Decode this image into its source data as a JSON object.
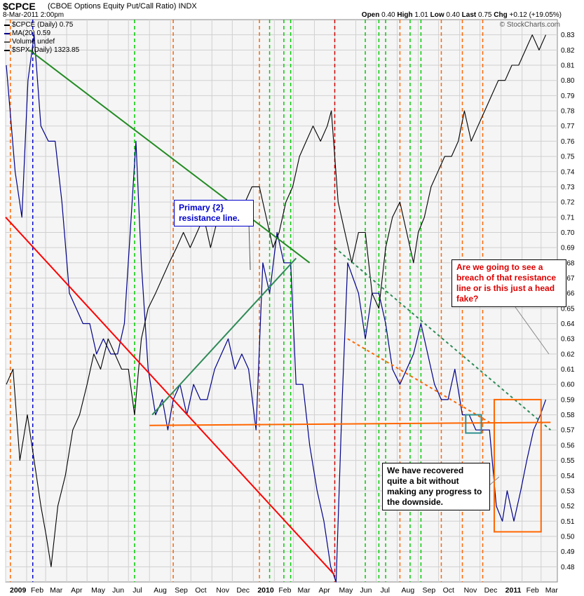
{
  "header": {
    "symbol": "$CPCE",
    "subtitle": "(CBOE Options Equity Put/Call Ratio)  INDX",
    "date": "8-Mar-2011 2:00pm",
    "open_label": "Open",
    "open_value": "0.40",
    "high_label": "High",
    "high_value": "1.01",
    "low_label": "Low",
    "low_value": "0.40",
    "last_label": "Last",
    "last_value": "0.75",
    "chg_label": "Chg",
    "chg_value": "+0.12 (+19.05%)",
    "watermark": "© StockCharts.com"
  },
  "legend": [
    {
      "label": "$CPCE (Daily) 0.75",
      "color": "#000000"
    },
    {
      "label": "MA(20) 0.59",
      "color": "#00008b"
    },
    {
      "label": "Volume undef",
      "color": "#555555"
    },
    {
      "label": "$SPX (Daily) 1323.85",
      "color": "#000000"
    }
  ],
  "notes": {
    "primary": "Primary {2} resistance line.",
    "breach": "Are we going to see a breach of that resistance line or is this just a head fake?",
    "recovered": "We have recovered quite a bit without making any progress to the downside."
  },
  "colors": {
    "ma_line": "#00008b",
    "spx_line": "#000000",
    "red_trend": "#ff0000",
    "green_trend": "#228b22",
    "orange_line": "#ff6600",
    "green_vline": "#00cc00",
    "orange_vline": "#ff6600",
    "blue_vline": "#0000cc",
    "red_vline": "#cc0000",
    "box": "#ff6600",
    "teal_box": "#2f8f8f"
  },
  "chart_data": {
    "type": "line",
    "yaxis_side": "right",
    "ylim": [
      0.47,
      0.84
    ],
    "yticks": [
      "0.48",
      "0.49",
      "0.50",
      "0.51",
      "0.52",
      "0.53",
      "0.54",
      "0.55",
      "0.56",
      "0.57",
      "0.58",
      "0.59",
      "0.60",
      "0.61",
      "0.62",
      "0.63",
      "0.64",
      "0.65",
      "0.66",
      "0.67",
      "0.68",
      "0.69",
      "0.70",
      "0.71",
      "0.72",
      "0.73",
      "0.74",
      "0.75",
      "0.76",
      "0.77",
      "0.78",
      "0.79",
      "0.80",
      "0.81",
      "0.82",
      "0.83"
    ],
    "xlim": [
      "2009-01-01",
      "2011-03-25"
    ],
    "xticks": [
      {
        "date": "2009-01-01",
        "label": "2009",
        "bold": true
      },
      {
        "date": "2009-02-01",
        "label": "Feb"
      },
      {
        "date": "2009-03-01",
        "label": "Mar"
      },
      {
        "date": "2009-04-01",
        "label": "Apr"
      },
      {
        "date": "2009-05-01",
        "label": "May"
      },
      {
        "date": "2009-06-01",
        "label": "Jun"
      },
      {
        "date": "2009-07-01",
        "label": "Jul"
      },
      {
        "date": "2009-08-01",
        "label": "Aug"
      },
      {
        "date": "2009-09-01",
        "label": "Sep"
      },
      {
        "date": "2009-10-01",
        "label": "Oct"
      },
      {
        "date": "2009-11-01",
        "label": "Nov"
      },
      {
        "date": "2009-12-01",
        "label": "Dec"
      },
      {
        "date": "2010-01-01",
        "label": "2010",
        "bold": true
      },
      {
        "date": "2010-02-01",
        "label": "Feb"
      },
      {
        "date": "2010-03-01",
        "label": "Mar"
      },
      {
        "date": "2010-04-01",
        "label": "Apr"
      },
      {
        "date": "2010-05-01",
        "label": "May"
      },
      {
        "date": "2010-06-01",
        "label": "Jun"
      },
      {
        "date": "2010-07-01",
        "label": "Jul"
      },
      {
        "date": "2010-08-01",
        "label": "Aug"
      },
      {
        "date": "2010-09-01",
        "label": "Sep"
      },
      {
        "date": "2010-10-01",
        "label": "Oct"
      },
      {
        "date": "2010-11-01",
        "label": "Nov"
      },
      {
        "date": "2010-12-01",
        "label": "Dec"
      },
      {
        "date": "2011-01-01",
        "label": "2011",
        "bold": true
      },
      {
        "date": "2011-02-01",
        "label": "Feb"
      },
      {
        "date": "2011-03-01",
        "label": "Mar"
      }
    ],
    "grid": true,
    "series": [
      {
        "name": "MA(20)",
        "color": "#00008b",
        "x": [
          "2009-01-02",
          "2009-01-15",
          "2009-01-25",
          "2009-02-03",
          "2009-02-12",
          "2009-02-22",
          "2009-03-05",
          "2009-03-15",
          "2009-03-25",
          "2009-04-05",
          "2009-04-15",
          "2009-04-25",
          "2009-05-05",
          "2009-05-15",
          "2009-05-25",
          "2009-06-05",
          "2009-06-15",
          "2009-06-25",
          "2009-07-05",
          "2009-07-12",
          "2009-07-20",
          "2009-07-30",
          "2009-08-10",
          "2009-08-20",
          "2009-08-28",
          "2009-09-05",
          "2009-09-15",
          "2009-09-25",
          "2009-10-05",
          "2009-10-15",
          "2009-10-25",
          "2009-11-05",
          "2009-11-15",
          "2009-11-25",
          "2009-12-05",
          "2009-12-15",
          "2009-12-25",
          "2010-01-05",
          "2010-01-15",
          "2010-01-25",
          "2010-02-05",
          "2010-02-15",
          "2010-02-25",
          "2010-03-05",
          "2010-03-15",
          "2010-03-25",
          "2010-04-05",
          "2010-04-15",
          "2010-04-25",
          "2010-05-03",
          "2010-05-12",
          "2010-05-20",
          "2010-05-28",
          "2010-06-05",
          "2010-06-15",
          "2010-06-25",
          "2010-07-05",
          "2010-07-15",
          "2010-07-25",
          "2010-08-05",
          "2010-08-15",
          "2010-08-25",
          "2010-09-05",
          "2010-09-15",
          "2010-09-25",
          "2010-10-05",
          "2010-10-15",
          "2010-10-25",
          "2010-11-05",
          "2010-11-15",
          "2010-11-25",
          "2010-12-05",
          "2010-12-15",
          "2010-12-25",
          "2011-01-03",
          "2011-01-10",
          "2011-01-20",
          "2011-01-30",
          "2011-02-08",
          "2011-02-18",
          "2011-02-28",
          "2011-03-08"
        ],
        "values": [
          0.81,
          0.74,
          0.71,
          0.8,
          0.83,
          0.77,
          0.76,
          0.76,
          0.72,
          0.66,
          0.65,
          0.64,
          0.64,
          0.62,
          0.63,
          0.62,
          0.62,
          0.64,
          0.71,
          0.76,
          0.68,
          0.61,
          0.58,
          0.59,
          0.57,
          0.59,
          0.6,
          0.58,
          0.6,
          0.59,
          0.59,
          0.61,
          0.62,
          0.63,
          0.61,
          0.62,
          0.61,
          0.57,
          0.68,
          0.66,
          0.7,
          0.68,
          0.68,
          0.6,
          0.6,
          0.56,
          0.53,
          0.51,
          0.48,
          0.47,
          0.59,
          0.68,
          0.67,
          0.66,
          0.63,
          0.66,
          0.66,
          0.64,
          0.61,
          0.6,
          0.61,
          0.62,
          0.64,
          0.62,
          0.6,
          0.59,
          0.59,
          0.61,
          0.58,
          0.58,
          0.57,
          0.57,
          0.57,
          0.52,
          0.51,
          0.53,
          0.51,
          0.53,
          0.55,
          0.57,
          0.58,
          0.59
        ]
      },
      {
        "name": "$SPX",
        "color": "#000000",
        "x": [
          "2009-01-02",
          "2009-01-12",
          "2009-01-22",
          "2009-02-02",
          "2009-02-12",
          "2009-02-22",
          "2009-03-02",
          "2009-03-09",
          "2009-03-19",
          "2009-03-30",
          "2009-04-10",
          "2009-04-20",
          "2009-05-01",
          "2009-05-11",
          "2009-05-21",
          "2009-06-01",
          "2009-06-11",
          "2009-06-21",
          "2009-07-01",
          "2009-07-10",
          "2009-07-20",
          "2009-07-30",
          "2009-08-10",
          "2009-08-20",
          "2009-08-30",
          "2009-09-10",
          "2009-09-20",
          "2009-09-30",
          "2009-10-10",
          "2009-10-20",
          "2009-10-30",
          "2009-11-10",
          "2009-11-20",
          "2009-11-30",
          "2009-12-10",
          "2009-12-20",
          "2009-12-30",
          "2010-01-10",
          "2010-01-20",
          "2010-01-30",
          "2010-02-08",
          "2010-02-18",
          "2010-02-28",
          "2010-03-10",
          "2010-03-20",
          "2010-03-30",
          "2010-04-10",
          "2010-04-20",
          "2010-04-26",
          "2010-05-06",
          "2010-05-16",
          "2010-05-26",
          "2010-06-05",
          "2010-06-15",
          "2010-06-25",
          "2010-07-05",
          "2010-07-15",
          "2010-07-25",
          "2010-08-05",
          "2010-08-15",
          "2010-08-25",
          "2010-09-01",
          "2010-09-10",
          "2010-09-20",
          "2010-09-30",
          "2010-10-10",
          "2010-10-20",
          "2010-10-30",
          "2010-11-08",
          "2010-11-18",
          "2010-11-28",
          "2010-12-08",
          "2010-12-18",
          "2010-12-28",
          "2011-01-07",
          "2011-01-17",
          "2011-01-27",
          "2011-02-06",
          "2011-02-16",
          "2011-02-26",
          "2011-03-08"
        ],
        "values": [
          0.6,
          0.61,
          0.55,
          0.58,
          0.55,
          0.52,
          0.5,
          0.48,
          0.52,
          0.54,
          0.57,
          0.58,
          0.6,
          0.62,
          0.61,
          0.63,
          0.62,
          0.61,
          0.61,
          0.58,
          0.63,
          0.65,
          0.66,
          0.67,
          0.68,
          0.69,
          0.7,
          0.69,
          0.7,
          0.71,
          0.69,
          0.71,
          0.71,
          0.72,
          0.71,
          0.72,
          0.73,
          0.73,
          0.71,
          0.69,
          0.7,
          0.72,
          0.73,
          0.75,
          0.76,
          0.77,
          0.76,
          0.77,
          0.78,
          0.72,
          0.7,
          0.68,
          0.7,
          0.7,
          0.66,
          0.65,
          0.69,
          0.71,
          0.72,
          0.7,
          0.68,
          0.7,
          0.71,
          0.73,
          0.74,
          0.75,
          0.75,
          0.76,
          0.78,
          0.76,
          0.77,
          0.78,
          0.79,
          0.8,
          0.8,
          0.81,
          0.81,
          0.82,
          0.83,
          0.82,
          0.83
        ]
      }
    ],
    "trendlines": [
      {
        "name": "red-trend-line",
        "color": "#ff0000",
        "from": [
          "2009-01-01",
          0.71
        ],
        "to": [
          "2010-04-30",
          0.475
        ],
        "dash": false,
        "width": 2
      },
      {
        "name": "green-trend-line-top",
        "color": "#228b22",
        "from": [
          "2009-02-05",
          0.82
        ],
        "to": [
          "2010-03-25",
          0.68
        ],
        "dash": false,
        "width": 2
      },
      {
        "name": "green-trend-line-rising",
        "color": "#2e8b57",
        "from": [
          "2009-08-05",
          0.58
        ],
        "to": [
          "2010-03-05",
          0.683
        ],
        "dash": false,
        "width": 2
      },
      {
        "name": "dotted-green-resistance-line",
        "color": "#2e8b57",
        "from": [
          "2010-05-01",
          0.69
        ],
        "to": [
          "2011-03-15",
          0.57
        ],
        "dash": true,
        "width": 2
      },
      {
        "name": "orange-support-line",
        "color": "#ff6600",
        "from": [
          "2009-08-01",
          0.573
        ],
        "to": [
          "2011-03-15",
          0.575
        ],
        "dash": false,
        "width": 2
      },
      {
        "name": "orange-dashed-line",
        "color": "#ff6600",
        "from": [
          "2010-05-20",
          0.63
        ],
        "to": [
          "2010-12-15",
          0.575
        ],
        "dash": true,
        "width": 2
      }
    ],
    "vlines": [
      {
        "date": "2009-01-08",
        "color": "#ff6600"
      },
      {
        "date": "2009-02-10",
        "color": "#0000cc"
      },
      {
        "date": "2009-07-10",
        "color": "#00cc00"
      },
      {
        "date": "2009-09-05",
        "color": "#ff6600"
      },
      {
        "date": "2010-01-10",
        "color": "#ff6600"
      },
      {
        "date": "2010-01-25",
        "color": "#00cc00"
      },
      {
        "date": "2010-02-15",
        "color": "#00cc00"
      },
      {
        "date": "2010-02-25",
        "color": "#00cc00"
      },
      {
        "date": "2010-05-01",
        "color": "#cc0000"
      },
      {
        "date": "2010-06-15",
        "color": "#00cc00"
      },
      {
        "date": "2010-07-05",
        "color": "#00cc00"
      },
      {
        "date": "2010-07-15",
        "color": "#00cc00"
      },
      {
        "date": "2010-08-05",
        "color": "#ff6600"
      },
      {
        "date": "2010-08-20",
        "color": "#00cc00"
      },
      {
        "date": "2010-09-05",
        "color": "#00cc00"
      },
      {
        "date": "2010-10-05",
        "color": "#ff6600"
      },
      {
        "date": "2010-11-05",
        "color": "#ff6600"
      },
      {
        "date": "2010-12-05",
        "color": "#ff6600"
      }
    ],
    "boxes": [
      {
        "name": "orange-highlight-box",
        "color": "#ff6600",
        "from": [
          "2010-12-22",
          0.59
        ],
        "to": [
          "2011-03-01",
          0.503
        ]
      },
      {
        "name": "teal-highlight-box",
        "color": "#2f8f8f",
        "from": [
          "2010-11-10",
          0.58
        ],
        "to": [
          "2010-12-03",
          0.568
        ]
      }
    ]
  }
}
